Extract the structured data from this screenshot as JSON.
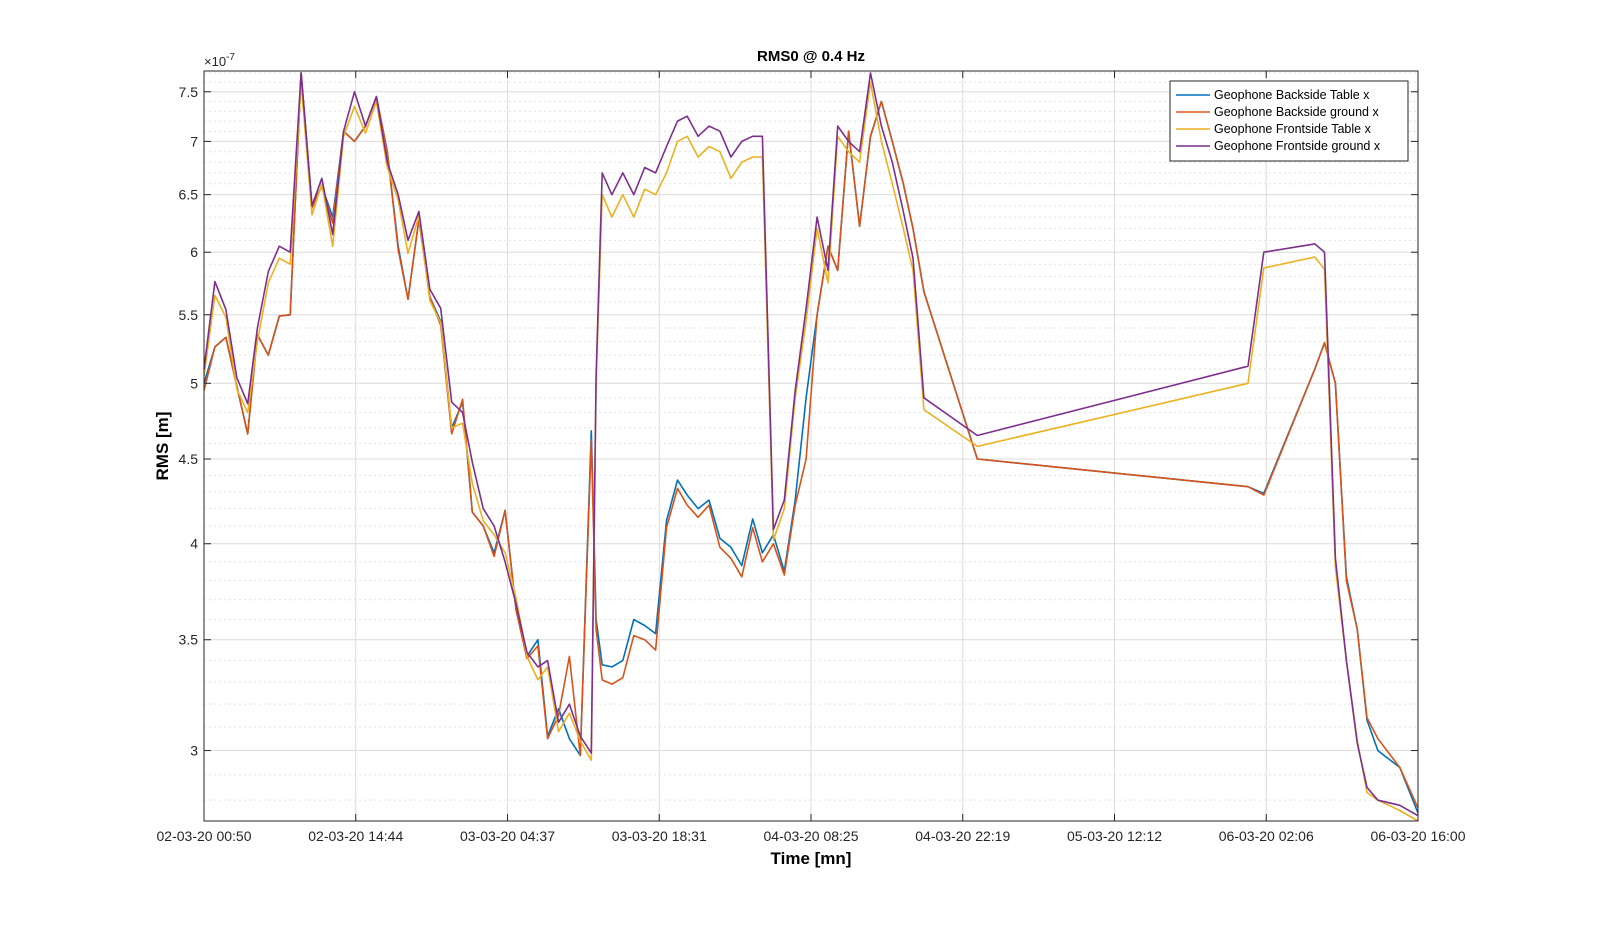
{
  "chart_data": {
    "type": "line",
    "title": "RMS0 @ 0.4 Hz",
    "xlabel": "Time [mn]",
    "ylabel": "RMS [m]",
    "y_exponent_label": "×10",
    "y_exponent_power": "-7",
    "y_scale": "log",
    "grid": true,
    "minor_grid": true,
    "legend_position": "top-right",
    "xlim": [
      0,
      1.0
    ],
    "ylim": [
      2.72,
      7.72
    ],
    "x_ticks": [
      {
        "pos": 0.0,
        "label": "02-03-20 00:50"
      },
      {
        "pos": 0.125,
        "label": "02-03-20 14:44"
      },
      {
        "pos": 0.25,
        "label": "03-03-20 04:37"
      },
      {
        "pos": 0.375,
        "label": "03-03-20 18:31"
      },
      {
        "pos": 0.5,
        "label": "04-03-20 08:25"
      },
      {
        "pos": 0.625,
        "label": "04-03-20 22:19"
      },
      {
        "pos": 0.75,
        "label": "05-03-20 12:12"
      },
      {
        "pos": 0.875,
        "label": "06-03-20 02:06"
      },
      {
        "pos": 1.0,
        "label": "06-03-20 16:00"
      }
    ],
    "y_ticks": [
      {
        "value": 3.0,
        "label": "3"
      },
      {
        "value": 3.5,
        "label": "3.5"
      },
      {
        "value": 4.0,
        "label": "4"
      },
      {
        "value": 4.5,
        "label": "4.5"
      },
      {
        "value": 5.0,
        "label": "5"
      },
      {
        "value": 5.5,
        "label": "5.5"
      },
      {
        "value": 6.0,
        "label": "6"
      },
      {
        "value": 6.5,
        "label": "6.5"
      },
      {
        "value": 7.0,
        "label": "7"
      },
      {
        "value": 7.5,
        "label": "7.5"
      }
    ],
    "y_minor_ticks": [
      2.8,
      2.9,
      3.1,
      3.2,
      3.3,
      3.4,
      3.6,
      3.7,
      3.8,
      3.9,
      4.1,
      4.2,
      4.3,
      4.4,
      4.6,
      4.7,
      4.8,
      4.9,
      5.1,
      5.2,
      5.3,
      5.4,
      5.6,
      5.7,
      5.8,
      5.9,
      6.1,
      6.2,
      6.3,
      6.4,
      6.6,
      6.7,
      6.8,
      6.9,
      7.1,
      7.2,
      7.3,
      7.4,
      7.6,
      7.7
    ],
    "x": [
      0.0,
      0.009,
      0.018,
      0.027,
      0.036,
      0.044,
      0.053,
      0.062,
      0.071,
      0.08,
      0.089,
      0.097,
      0.106,
      0.115,
      0.124,
      0.133,
      0.142,
      0.151,
      0.16,
      0.168,
      0.177,
      0.186,
      0.195,
      0.204,
      0.213,
      0.221,
      0.23,
      0.239,
      0.248,
      0.257,
      0.266,
      0.275,
      0.283,
      0.292,
      0.301,
      0.31,
      0.319,
      0.323,
      0.328,
      0.336,
      0.345,
      0.354,
      0.363,
      0.372,
      0.381,
      0.39,
      0.398,
      0.407,
      0.416,
      0.425,
      0.434,
      0.443,
      0.452,
      0.46,
      0.469,
      0.478,
      0.487,
      0.496,
      0.505,
      0.514,
      0.522,
      0.531,
      0.54,
      0.549,
      0.558,
      0.567,
      0.576,
      0.584,
      0.593,
      0.637,
      0.86,
      0.873,
      0.915,
      0.923,
      0.932,
      0.941,
      0.95,
      0.958,
      0.967,
      0.985,
      1.0
    ],
    "series": [
      {
        "name": "Geophone Backside Table x",
        "color": "#0072BD",
        "values": [
          5.0,
          5.26,
          5.33,
          4.98,
          4.66,
          5.35,
          5.2,
          5.49,
          5.5,
          7.7,
          6.4,
          6.58,
          6.3,
          7.1,
          7.0,
          7.15,
          7.45,
          6.9,
          6.05,
          5.62,
          6.28,
          5.64,
          5.45,
          4.7,
          4.87,
          4.18,
          4.1,
          3.95,
          4.19,
          3.65,
          3.42,
          3.5,
          3.06,
          3.18,
          3.05,
          2.98,
          4.68,
          3.6,
          3.38,
          3.37,
          3.4,
          3.6,
          3.57,
          3.53,
          4.13,
          4.37,
          4.28,
          4.2,
          4.25,
          4.03,
          3.98,
          3.88,
          4.14,
          3.95,
          4.05,
          3.85,
          4.25,
          4.9,
          5.5,
          6.05,
          5.85,
          7.1,
          6.22,
          7.05,
          7.4,
          7.0,
          6.6,
          6.2,
          5.68,
          4.5,
          4.33,
          4.29,
          5.1,
          5.29,
          5.0,
          3.82,
          3.55,
          3.13,
          3.0,
          2.93,
          2.75
        ]
      },
      {
        "name": "Geophone Backside ground x",
        "color": "#D95319",
        "values": [
          4.95,
          5.26,
          5.33,
          4.98,
          4.66,
          5.35,
          5.2,
          5.49,
          5.5,
          7.7,
          6.38,
          6.58,
          6.25,
          7.1,
          7.0,
          7.15,
          7.45,
          6.9,
          6.02,
          5.62,
          6.28,
          5.64,
          5.42,
          4.66,
          4.89,
          4.18,
          4.1,
          3.93,
          4.19,
          3.65,
          3.41,
          3.47,
          3.05,
          3.15,
          3.42,
          2.98,
          4.62,
          3.55,
          3.31,
          3.29,
          3.32,
          3.52,
          3.5,
          3.45,
          4.09,
          4.32,
          4.22,
          4.15,
          4.22,
          3.98,
          3.92,
          3.82,
          4.09,
          3.9,
          4.0,
          3.83,
          4.22,
          4.5,
          5.5,
          6.05,
          5.85,
          7.1,
          6.22,
          7.05,
          7.4,
          7.0,
          6.6,
          6.2,
          5.68,
          4.5,
          4.33,
          4.28,
          5.1,
          5.29,
          5.0,
          3.8,
          3.55,
          3.14,
          3.05,
          2.93,
          2.77
        ]
      },
      {
        "name": "Geophone Frontside Table x",
        "color": "#EDB120",
        "values": [
          5.05,
          5.65,
          5.48,
          4.96,
          4.8,
          5.3,
          5.75,
          5.95,
          5.9,
          7.6,
          6.32,
          6.6,
          6.05,
          7.05,
          7.35,
          7.08,
          7.4,
          6.75,
          6.45,
          5.99,
          6.31,
          5.61,
          5.44,
          4.7,
          4.73,
          4.35,
          4.13,
          4.05,
          3.95,
          3.71,
          3.42,
          3.31,
          3.37,
          3.08,
          3.16,
          3.04,
          2.96,
          5.0,
          6.5,
          6.3,
          6.5,
          6.3,
          6.55,
          6.5,
          6.7,
          7.0,
          7.05,
          6.85,
          6.95,
          6.9,
          6.65,
          6.8,
          6.85,
          6.85,
          4.02,
          4.2,
          4.9,
          5.45,
          6.2,
          5.75,
          7.05,
          6.9,
          6.8,
          7.6,
          7.0,
          6.6,
          6.2,
          5.85,
          4.82,
          4.58,
          5.0,
          5.87,
          5.96,
          5.86,
          3.87,
          3.4,
          3.04,
          2.83,
          2.8,
          2.76,
          2.72
        ]
      },
      {
        "name": "Geophone Frontside ground x",
        "color": "#7E2F8E",
        "values": [
          5.1,
          5.76,
          5.54,
          5.04,
          4.86,
          5.4,
          5.84,
          6.05,
          6.0,
          7.7,
          6.4,
          6.65,
          6.15,
          7.1,
          7.5,
          7.15,
          7.45,
          6.8,
          6.5,
          6.1,
          6.35,
          5.7,
          5.55,
          4.87,
          4.8,
          4.48,
          4.2,
          4.1,
          3.9,
          3.68,
          3.44,
          3.37,
          3.4,
          3.12,
          3.2,
          3.06,
          2.99,
          5.05,
          6.7,
          6.5,
          6.7,
          6.5,
          6.75,
          6.7,
          6.95,
          7.2,
          7.25,
          7.05,
          7.15,
          7.1,
          6.85,
          7.0,
          7.05,
          7.05,
          4.08,
          4.25,
          4.95,
          5.55,
          6.3,
          5.85,
          7.15,
          7.0,
          6.9,
          7.7,
          7.15,
          6.8,
          6.35,
          5.95,
          4.9,
          4.65,
          5.12,
          6.0,
          6.07,
          6.0,
          3.92,
          3.4,
          3.03,
          2.85,
          2.8,
          2.78,
          2.74
        ]
      }
    ]
  }
}
